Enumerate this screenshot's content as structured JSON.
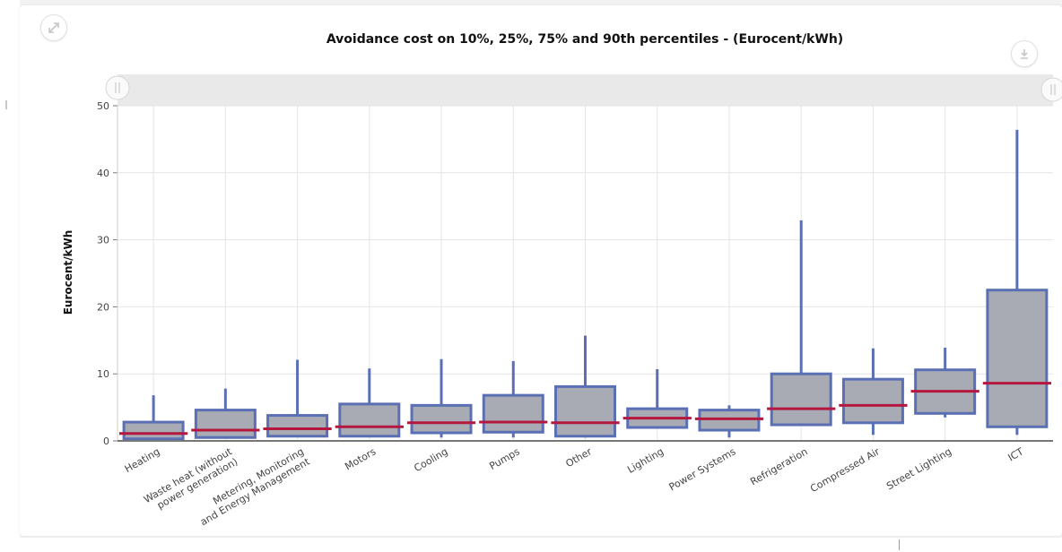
{
  "toolbar": {
    "expand_icon": "expand-icon",
    "download_icon": "download-icon"
  },
  "colors": {
    "box_fill": "#a8aab4",
    "box_stroke": "#5a6fb4",
    "whisker": "#5a6fb4",
    "median": "#b5183e",
    "grid": "#e4e4e4",
    "axis": "#777777"
  },
  "chart_data": {
    "type": "box",
    "title": "Avoidance cost on 10%, 25%, 75% and 90th percentiles - (Eurocent/kWh)",
    "xlabel": "",
    "ylabel": "Eurocent/kWh",
    "ylim": [
      0,
      50
    ],
    "yticks": [
      0,
      10,
      20,
      30,
      40,
      50
    ],
    "grid": true,
    "categories": [
      "Heating",
      "Waste heat (without power generation)",
      "Metering, Monitoring and Energy Management",
      "Motors",
      "Cooling",
      "Pumps",
      "Other",
      "Lighting",
      "Power Systems",
      "Refrigeration",
      "Compressed Air",
      "Street Lighting",
      "ICT"
    ],
    "category_lines": [
      [
        "Heating"
      ],
      [
        "Waste heat (without",
        "power generation)"
      ],
      [
        "Metering, Monitoring",
        "and Energy Management"
      ],
      [
        "Motors"
      ],
      [
        "Cooling"
      ],
      [
        "Pumps"
      ],
      [
        "Other"
      ],
      [
        "Lighting"
      ],
      [
        "Power Systems"
      ],
      [
        "Refrigeration"
      ],
      [
        "Compressed Air"
      ],
      [
        "Street Lighting"
      ],
      [
        "ICT"
      ]
    ],
    "series": [
      {
        "name": "",
        "boxes": [
          {
            "p10": 0.3,
            "p25": 0.3,
            "median": 1.1,
            "p75": 2.8,
            "p90": 6.8
          },
          {
            "p10": 0.5,
            "p25": 0.5,
            "median": 1.6,
            "p75": 4.6,
            "p90": 7.8
          },
          {
            "p10": 0.7,
            "p25": 0.7,
            "median": 1.8,
            "p75": 3.8,
            "p90": 12.1
          },
          {
            "p10": 0.7,
            "p25": 0.7,
            "median": 2.1,
            "p75": 5.5,
            "p90": 10.8
          },
          {
            "p10": 0.5,
            "p25": 1.2,
            "median": 2.7,
            "p75": 5.3,
            "p90": 12.2
          },
          {
            "p10": 0.5,
            "p25": 1.3,
            "median": 2.8,
            "p75": 6.8,
            "p90": 11.9
          },
          {
            "p10": 0.5,
            "p25": 0.7,
            "median": 2.7,
            "p75": 8.1,
            "p90": 15.7
          },
          {
            "p10": 2.0,
            "p25": 2.0,
            "median": 3.4,
            "p75": 4.8,
            "p90": 10.7
          },
          {
            "p10": 0.5,
            "p25": 1.6,
            "median": 3.3,
            "p75": 4.6,
            "p90": 5.3
          },
          {
            "p10": 2.4,
            "p25": 2.4,
            "median": 4.8,
            "p75": 10.0,
            "p90": 32.9
          },
          {
            "p10": 0.9,
            "p25": 2.7,
            "median": 5.3,
            "p75": 9.2,
            "p90": 13.8
          },
          {
            "p10": 3.5,
            "p25": 4.1,
            "median": 7.4,
            "p75": 10.6,
            "p90": 13.9
          },
          {
            "p10": 0.9,
            "p25": 2.1,
            "median": 8.6,
            "p75": 22.5,
            "p90": 46.4
          }
        ]
      }
    ]
  }
}
